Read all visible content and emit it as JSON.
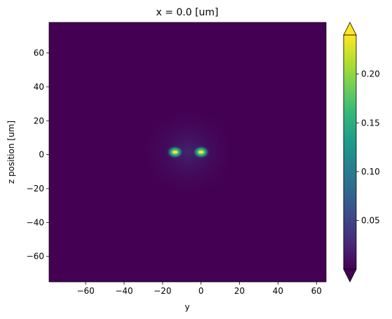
{
  "chart_data": {
    "type": "heatmap",
    "title": "x = 0.0 [um]",
    "xlabel": "y",
    "ylabel": "z position [um]",
    "xlim": [
      -79,
      65
    ],
    "ylim": [
      -75,
      78
    ],
    "xticks": [
      -60,
      -40,
      -20,
      0,
      20,
      40,
      60
    ],
    "xtick_labels": [
      "−60",
      "−40",
      "−20",
      "0",
      "20",
      "40",
      "60"
    ],
    "yticks": [
      -60,
      -40,
      -20,
      0,
      20,
      40,
      60
    ],
    "ytick_labels": [
      "−60",
      "−40",
      "−20",
      "0",
      "20",
      "40",
      "60"
    ],
    "colormap": "viridis",
    "color_range": [
      0.0,
      0.24
    ],
    "colorbar": {
      "ticks": [
        0.05,
        0.1,
        0.15,
        0.2
      ],
      "tick_labels": [
        "0.05",
        "0.10",
        "0.15",
        "0.20"
      ],
      "extend": "both"
    },
    "hotspots": [
      {
        "y": -13.5,
        "z": 1.5,
        "peak": 0.24
      },
      {
        "y": 0,
        "z": 1.5,
        "peak": 0.24
      }
    ],
    "background_value": 0.0
  }
}
